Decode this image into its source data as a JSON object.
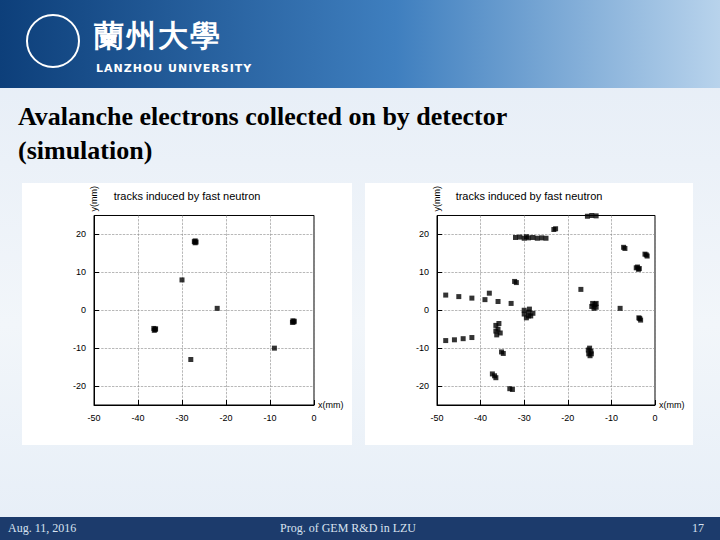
{
  "header": {
    "logo_text": "蘭州大學",
    "logo_subtext": "LANZHOU UNIVERSITY"
  },
  "title": [
    "Avalanche electrons collected on by detector",
    "(simulation)"
  ],
  "footer": {
    "left": "Aug. 11, 2016",
    "center": "Prog. of GEM R&D in LZU",
    "right": "17"
  },
  "chart_data": [
    {
      "type": "scatter",
      "title": "tracks induced by fast neutron",
      "x_label": "x(mm)",
      "y_label": "y(mm)",
      "xlim": [
        -50,
        0
      ],
      "xticks": [
        -50,
        -40,
        -30,
        -20,
        -10,
        0
      ],
      "ylim": [
        -25,
        25
      ],
      "yticks": [
        -20,
        -10,
        0,
        10,
        20
      ],
      "grid": true,
      "color": "#000000",
      "marker": "square",
      "points": [
        [
          -27.2,
          18.1
        ],
        [
          -27,
          17.8
        ],
        [
          -26.8,
          18
        ],
        [
          -27,
          18.3
        ],
        [
          -36.4,
          -4.8
        ],
        [
          -36.1,
          -5.1
        ],
        [
          -36.3,
          -5.3
        ],
        [
          -36,
          -4.9
        ],
        [
          -4.8,
          -2.8
        ],
        [
          -4.6,
          -3.1
        ],
        [
          -4.9,
          -3.2
        ],
        [
          -4.5,
          -2.9
        ],
        [
          -22,
          0.5
        ],
        [
          -28,
          -13
        ],
        [
          -9,
          -10
        ],
        [
          -30,
          8
        ]
      ]
    },
    {
      "type": "scatter",
      "title": "tracks induced by fast neutron",
      "x_label": "x(mm)",
      "y_label": "y(mm)",
      "xlim": [
        -50,
        0
      ],
      "xticks": [
        -50,
        -40,
        -30,
        -20,
        -10,
        0
      ],
      "ylim": [
        -25,
        25
      ],
      "yticks": [
        -20,
        -10,
        0,
        10,
        20
      ],
      "grid": true,
      "color": "#000000",
      "marker": "square",
      "points": [
        [
          -32,
          19.2
        ],
        [
          -31,
          19.3
        ],
        [
          -30,
          19
        ],
        [
          -29.5,
          19.4
        ],
        [
          -29,
          19.1
        ],
        [
          -28,
          19.2
        ],
        [
          -27,
          19
        ],
        [
          -26,
          19.1
        ],
        [
          -25,
          19
        ],
        [
          -23.2,
          21.3
        ],
        [
          -22.8,
          21.5
        ],
        [
          -15.5,
          24.8
        ],
        [
          -14.5,
          25
        ],
        [
          -13.5,
          24.9
        ],
        [
          -7.2,
          16.6
        ],
        [
          -6.9,
          16.3
        ],
        [
          -2.3,
          14.8
        ],
        [
          -1.8,
          14.3
        ],
        [
          -2,
          14.6
        ],
        [
          -4.3,
          11.2
        ],
        [
          -3.8,
          10.8
        ],
        [
          -4,
          11.4
        ],
        [
          -3.6,
          11
        ],
        [
          -32.2,
          7.6
        ],
        [
          -31.8,
          7.3
        ],
        [
          -38,
          4.5
        ],
        [
          -30,
          -1
        ],
        [
          -29,
          -0.5
        ],
        [
          -28.5,
          -1.5
        ],
        [
          -29.5,
          -2
        ],
        [
          -28,
          -0.8
        ],
        [
          -29,
          -1.5
        ],
        [
          -30,
          0
        ],
        [
          -28.8,
          0.3
        ],
        [
          -48,
          4
        ],
        [
          -45,
          3.6
        ],
        [
          -42,
          3.2
        ],
        [
          -39,
          2.8
        ],
        [
          -36,
          2.3
        ],
        [
          -33,
          1.8
        ],
        [
          -36.5,
          -4
        ],
        [
          -36,
          -5
        ],
        [
          -35.5,
          -6
        ],
        [
          -36.3,
          -6.5
        ],
        [
          -35.8,
          -3.5
        ],
        [
          -36.5,
          -5.5
        ],
        [
          -48,
          -8
        ],
        [
          -46,
          -7.8
        ],
        [
          -44,
          -7.5
        ],
        [
          -42,
          -7.2
        ],
        [
          -14.5,
          1
        ],
        [
          -13.8,
          1.5
        ],
        [
          -14,
          0.5
        ],
        [
          -13.5,
          0.8
        ],
        [
          -14.3,
          1.8
        ],
        [
          -13.5,
          1.8
        ],
        [
          -8,
          0.5
        ],
        [
          -3.7,
          -2
        ],
        [
          -3.3,
          -2.6
        ],
        [
          -3.5,
          -2.2
        ],
        [
          -35.2,
          -11
        ],
        [
          -34.8,
          -11.4
        ],
        [
          -15,
          -10
        ],
        [
          -14.7,
          -10.8
        ],
        [
          -15.2,
          -11.5
        ],
        [
          -14.9,
          -12
        ],
        [
          -15.3,
          -10.5
        ],
        [
          -14.6,
          -11.5
        ],
        [
          -37.3,
          -16.8
        ],
        [
          -36.8,
          -17.3
        ],
        [
          -36.5,
          -17.8
        ],
        [
          -33.3,
          -20.7
        ],
        [
          -32.7,
          -20.9
        ],
        [
          -17,
          5.5
        ]
      ]
    }
  ]
}
